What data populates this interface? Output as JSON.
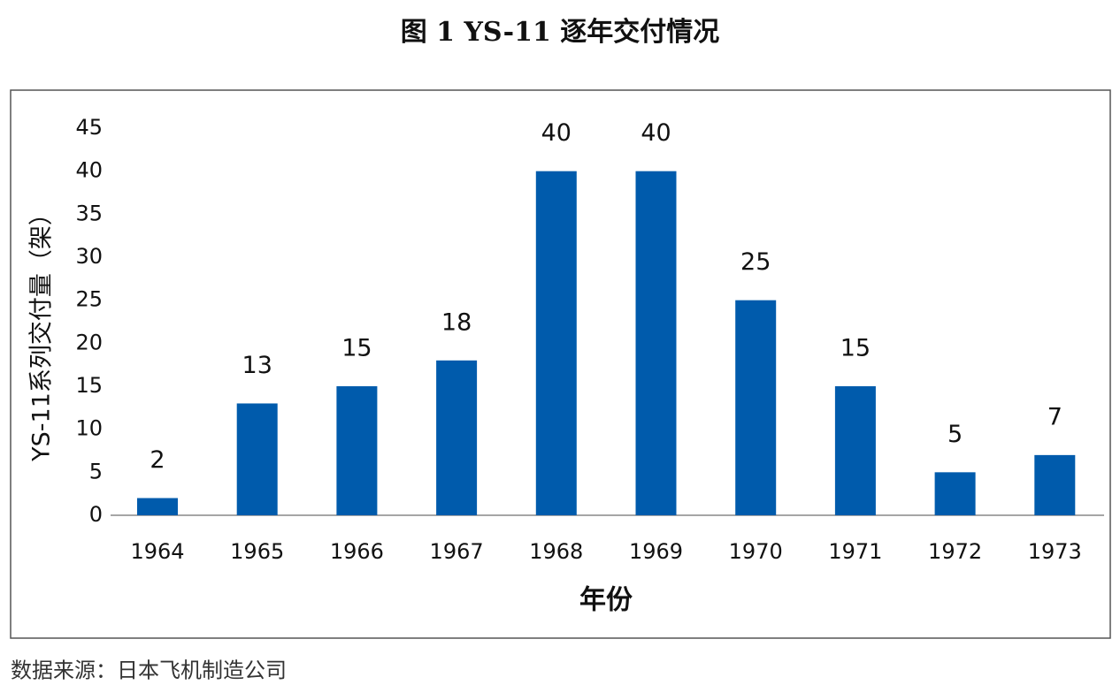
{
  "chart_data": {
    "type": "bar",
    "title": "图 1  YS-11 逐年交付情况",
    "y_label": "YS-11系列交付量（架）",
    "x_label": "年份",
    "source": "数据来源：日本飞机制造公司",
    "categories": [
      "1964",
      "1965",
      "1966",
      "1967",
      "1968",
      "1969",
      "1970",
      "1971",
      "1972",
      "1973"
    ],
    "values": [
      2,
      13,
      15,
      18,
      40,
      40,
      25,
      15,
      5,
      7
    ],
    "color": "#005bac",
    "ylim": [
      0,
      45
    ],
    "yticks": [
      0,
      5,
      10,
      15,
      20,
      25,
      30,
      35,
      40,
      45
    ],
    "grid": false
  }
}
